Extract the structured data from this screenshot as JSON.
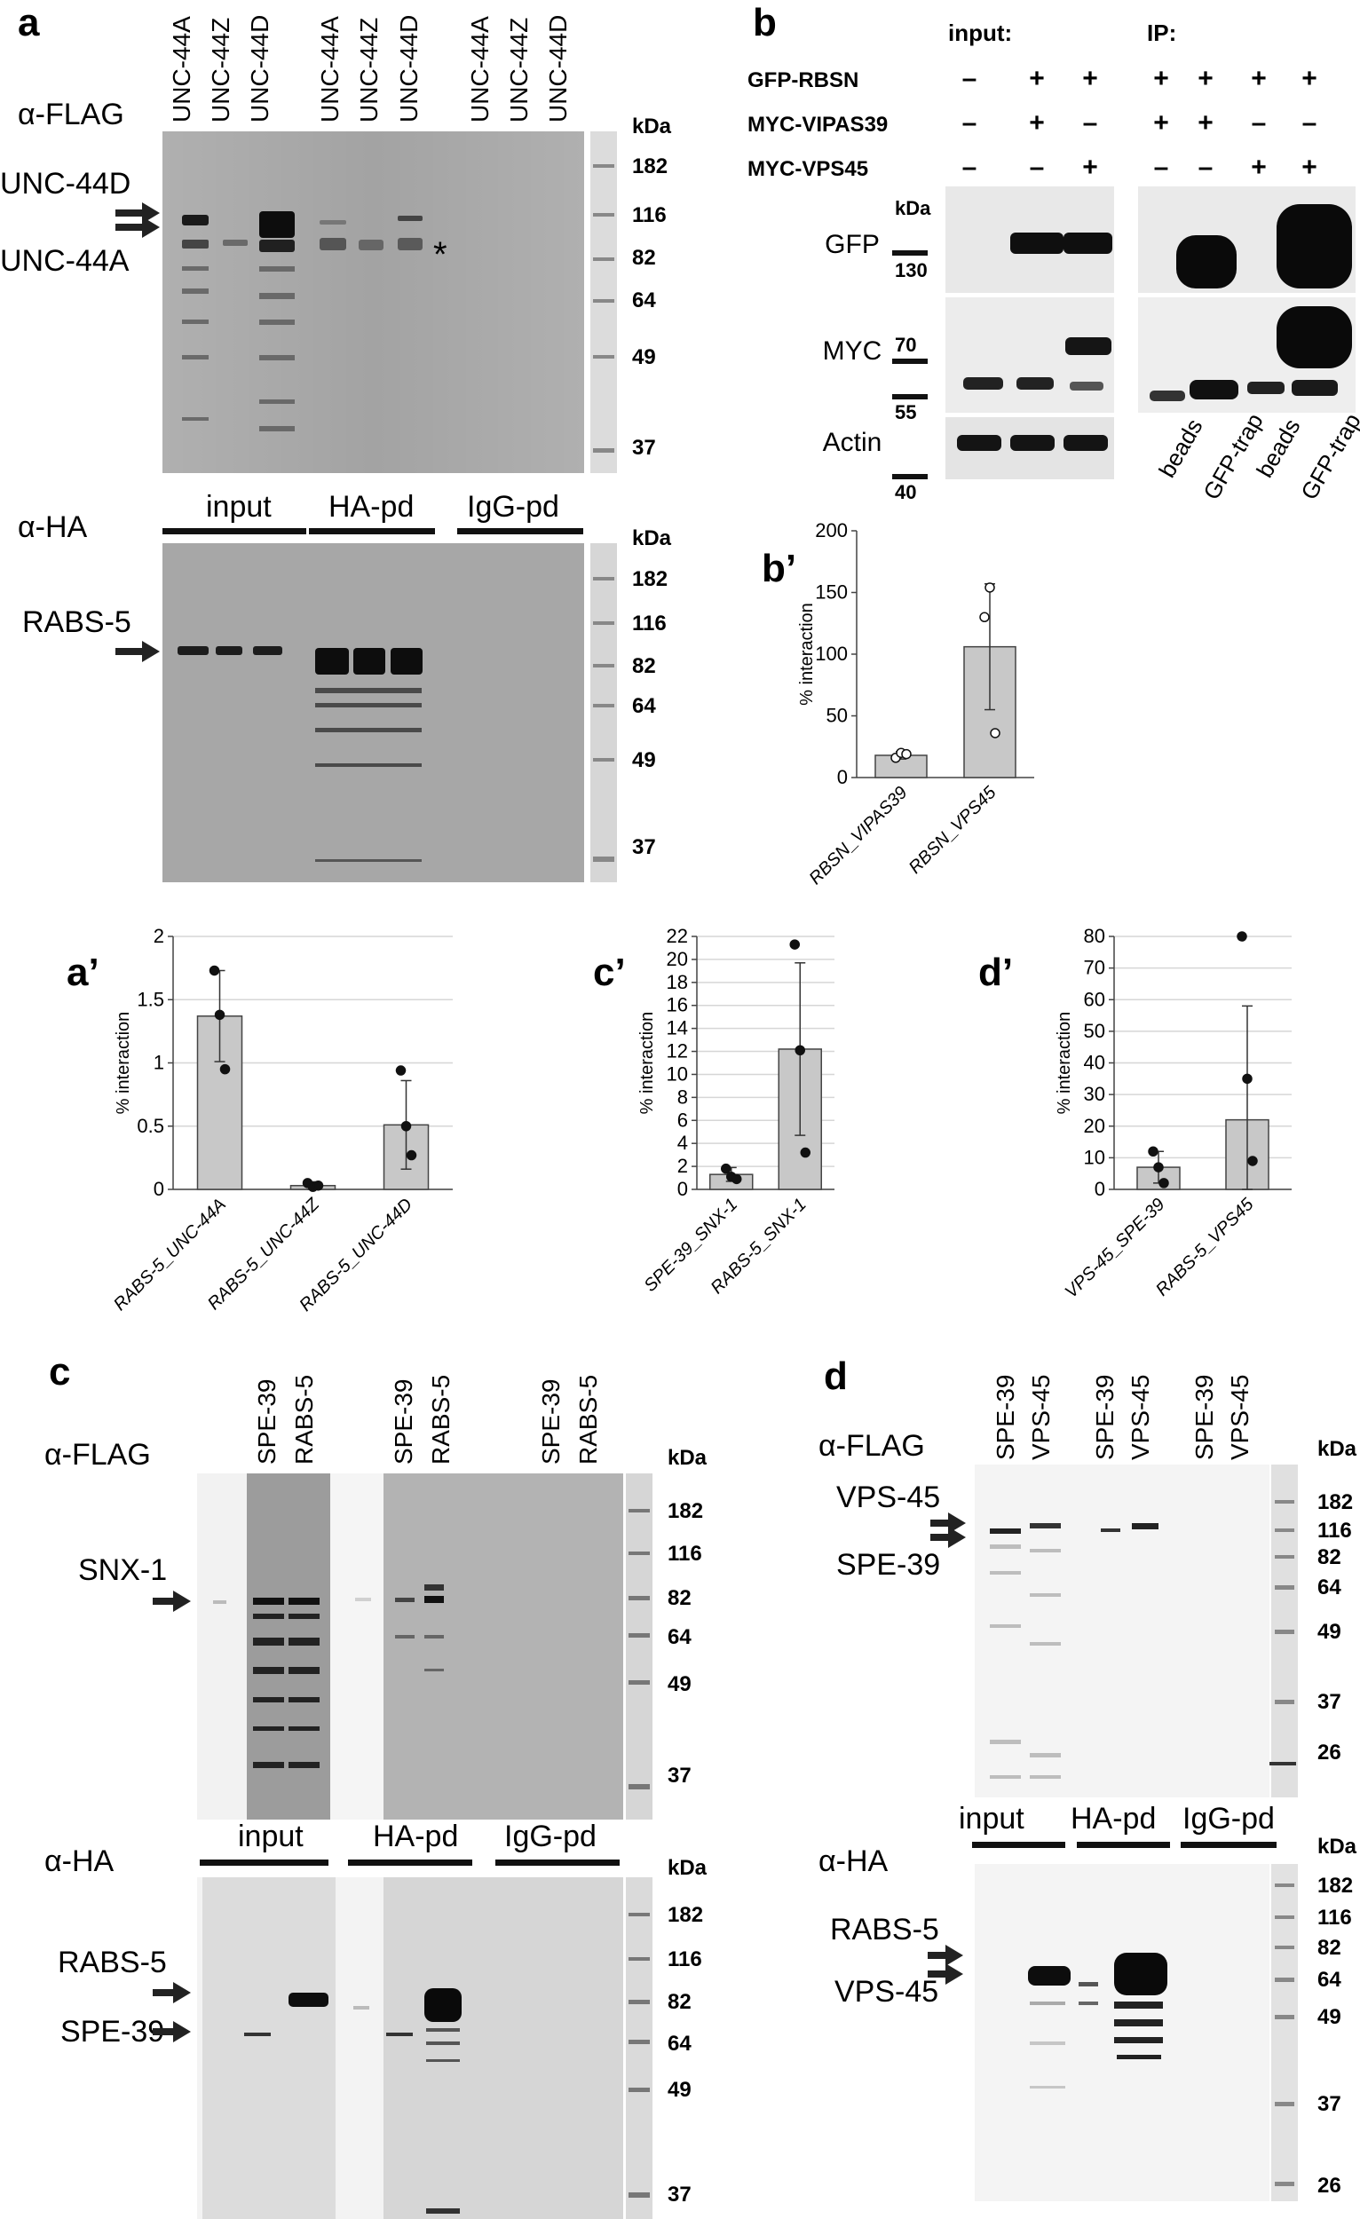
{
  "panels": {
    "a": {
      "letter": "a",
      "top": {
        "antibody": "α-FLAG",
        "lanes": [
          "UNC-44A",
          "UNC-44Z",
          "UNC-44D",
          "UNC-44A",
          "UNC-44Z",
          "UNC-44D",
          "UNC-44A",
          "UNC-44Z",
          "UNC-44D"
        ],
        "arrow_labels": [
          "UNC-44D",
          "UNC-44A"
        ],
        "asterisk": "*",
        "kda_title": "kDa",
        "markers": [
          "182",
          "116",
          "82",
          "64",
          "49",
          "37"
        ]
      },
      "bottom": {
        "antibody": "α-HA",
        "groups": [
          "input",
          "HA-pd",
          "IgG-pd"
        ],
        "arrow_labels": [
          "RABS-5"
        ],
        "kda_title": "kDa",
        "markers": [
          "182",
          "116",
          "82",
          "64",
          "49",
          "37"
        ]
      }
    },
    "b": {
      "letter": "b",
      "section_labels": [
        "input:",
        "IP:"
      ],
      "rows": [
        {
          "label": "GFP-RBSN",
          "signs": [
            "–",
            "+",
            "+",
            "+",
            "+",
            "+",
            "+"
          ]
        },
        {
          "label": "MYC-VIPAS39",
          "signs": [
            "–",
            "+",
            "–",
            "+",
            "+",
            "–",
            "–"
          ]
        },
        {
          "label": "MYC-VPS45",
          "signs": [
            "–",
            "–",
            "+",
            "–",
            "–",
            "+",
            "+"
          ]
        }
      ],
      "blot_labels": [
        "GFP",
        "MYC",
        "Actin"
      ],
      "kda_title": "kDa",
      "markers": [
        "130",
        "70",
        "55",
        "40"
      ],
      "ip_lanes": [
        "beads",
        "GFP-trap",
        "beads",
        "GFP-trap"
      ]
    },
    "d": {
      "letter": "d",
      "top": {
        "antibody": "α-FLAG",
        "lanes": [
          "SPE-39",
          "VPS-45",
          "SPE-39",
          "VPS-45",
          "SPE-39",
          "VPS-45"
        ],
        "arrow_labels": [
          "VPS-45",
          "SPE-39"
        ],
        "kda_title": "kDa",
        "markers": [
          "182",
          "116",
          "82",
          "64",
          "49",
          "37",
          "26"
        ]
      },
      "bottom": {
        "antibody": "α-HA",
        "groups": [
          "input",
          "HA-pd",
          "IgG-pd"
        ],
        "arrow_labels": [
          "RABS-5",
          "VPS-45"
        ],
        "kda_title": "kDa",
        "markers": [
          "182",
          "116",
          "82",
          "64",
          "49",
          "37",
          "26"
        ]
      }
    },
    "c": {
      "letter": "c",
      "top": {
        "antibody": "α-FLAG",
        "lanes": [
          "SPE-39",
          "RABS-5",
          "SPE-39",
          "RABS-5",
          "SPE-39",
          "RABS-5"
        ],
        "arrow_labels": [
          "SNX-1"
        ],
        "kda_title": "kDa",
        "markers": [
          "182",
          "116",
          "82",
          "64",
          "49",
          "37"
        ]
      },
      "bottom": {
        "antibody": "α-HA",
        "groups": [
          "input",
          "HA-pd",
          "IgG-pd"
        ],
        "arrow_labels": [
          "RABS-5",
          "SPE-39"
        ],
        "kda_title": "kDa",
        "markers": [
          "182",
          "116",
          "82",
          "64",
          "49",
          "37"
        ]
      }
    }
  },
  "chart_data": [
    {
      "panel": "b’",
      "type": "bar",
      "categories": [
        "RBSN_VIPAS39",
        "RBSN_VPS45"
      ],
      "values": [
        18,
        106
      ],
      "error": [
        3,
        51
      ],
      "points": [
        [
          16,
          20,
          19
        ],
        [
          130,
          154,
          36
        ]
      ],
      "ylabel": "% interaction",
      "ylim": [
        0,
        200
      ],
      "yticks": [
        0,
        50,
        100,
        150,
        200
      ],
      "open_markers": true,
      "grid": false
    },
    {
      "panel": "a’",
      "type": "bar",
      "categories": [
        "RABS-5_UNC-44A",
        "RABS-5_UNC-44Z",
        "RABS-5_UNC-44D"
      ],
      "values": [
        1.37,
        0.03,
        0.51
      ],
      "error": [
        0.36,
        0.03,
        0.35
      ],
      "points": [
        [
          1.73,
          1.38,
          0.95
        ],
        [
          0.05,
          0.02,
          0.03
        ],
        [
          0.94,
          0.5,
          0.27
        ]
      ],
      "ylabel": "% interaction",
      "ylim": [
        0,
        2
      ],
      "yticks": [
        0,
        0.5,
        1,
        1.5,
        2
      ],
      "ytick_labels": [
        "0",
        "0.5",
        "1",
        "1.5",
        "2"
      ],
      "open_markers": false,
      "grid": true
    },
    {
      "panel": "c’",
      "type": "bar",
      "categories": [
        "SPE-39_SNX-1",
        "RABS-5_SNX-1"
      ],
      "values": [
        1.3,
        12.2
      ],
      "error": [
        0.6,
        7.5
      ],
      "points": [
        [
          1.8,
          1.1,
          0.9
        ],
        [
          21.3,
          12.1,
          3.2
        ]
      ],
      "ylabel": "% interaction",
      "ylim": [
        0,
        22
      ],
      "yticks": [
        0,
        2,
        4,
        6,
        8,
        10,
        12,
        14,
        16,
        18,
        20,
        22
      ],
      "open_markers": false,
      "grid": true
    },
    {
      "panel": "d’",
      "type": "bar",
      "categories": [
        "VPS-45_SPE-39",
        "RABS-5_VPS45"
      ],
      "values": [
        7,
        22
      ],
      "error": [
        5,
        36
      ],
      "points": [
        [
          12,
          7,
          2
        ],
        [
          80,
          35,
          9
        ]
      ],
      "ylabel": "% interaction",
      "ylim": [
        0,
        80
      ],
      "yticks": [
        0,
        10,
        20,
        30,
        40,
        50,
        60,
        70,
        80
      ],
      "open_markers": false,
      "grid": true
    }
  ]
}
